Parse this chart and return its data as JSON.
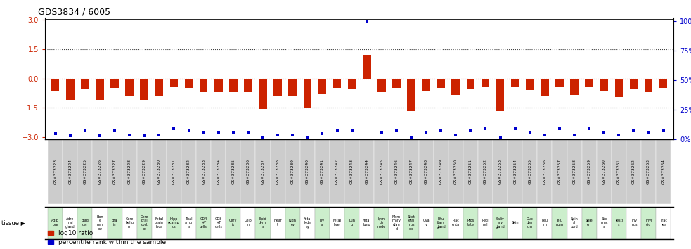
{
  "title": "GDS3834 / 6005",
  "samples": [
    "GSM373223",
    "GSM373224",
    "GSM373225",
    "GSM373226",
    "GSM373227",
    "GSM373228",
    "GSM373229",
    "GSM373230",
    "GSM373231",
    "GSM373232",
    "GSM373233",
    "GSM373234",
    "GSM373235",
    "GSM373236",
    "GSM373237",
    "GSM373238",
    "GSM373239",
    "GSM373240",
    "GSM373241",
    "GSM373242",
    "GSM373243",
    "GSM373244",
    "GSM373245",
    "GSM373246",
    "GSM373247",
    "GSM373248",
    "GSM373249",
    "GSM373250",
    "GSM373251",
    "GSM373252",
    "GSM373253",
    "GSM373254",
    "GSM373255",
    "GSM373256",
    "GSM373257",
    "GSM373258",
    "GSM373259",
    "GSM373260",
    "GSM373261",
    "GSM373262",
    "GSM373263",
    "GSM373264"
  ],
  "tissue_short": [
    "Adip\nose",
    "Adre\nnal\ngland",
    "Blad\nder",
    "Bon\ne\nmarr\now",
    "Bra\nin",
    "Cere\nbellu\nm",
    "Cere\nbral\ncort\nex",
    "Fetal\nbrain\nloca",
    "Hipp\nocamp\nus",
    "Thal\namu\ns",
    "CD4\n+T\ncells",
    "CD8\n+T\ncells",
    "Cerv\nix",
    "Colo\nn",
    "Epid\ndymi\ns",
    "Hear\nt",
    "Kidn\ney",
    "Fetal\nkidn\ney",
    "Liv\ner",
    "Fetal\nliver",
    "Lun\ng",
    "Fetal\nlung",
    "Lym\nph\nnode",
    "Mam\nmary\nglan\nd",
    "Sket\netal\nmus\ncle",
    "Ova\nry",
    "Pitu\nitary\ngland",
    "Plac\nenta",
    "Pros\ntate",
    "Reti\nnal",
    "Saliv\nary\ngland",
    "Skin",
    "Duo\nden\num",
    "Ileu\nm",
    "Jeju\nnum",
    "Spin\nal\ncord",
    "Sple\nen",
    "Sto\nmac\ns",
    "Testi\ns",
    "Thy\nmus",
    "Thyr\noid",
    "Trac\nhea"
  ],
  "log10_ratio": [
    -0.65,
    -1.1,
    -0.55,
    -1.1,
    -0.5,
    -0.9,
    -1.1,
    -0.9,
    -0.45,
    -0.5,
    -0.7,
    -0.7,
    -0.7,
    -0.7,
    -1.55,
    -0.9,
    -0.9,
    -1.5,
    -0.8,
    -0.5,
    -0.55,
    1.2,
    -0.7,
    -0.5,
    -1.65,
    -0.65,
    -0.5,
    -0.85,
    -0.55,
    -0.45,
    -1.65,
    -0.45,
    -0.6,
    -0.9,
    -0.45,
    -0.85,
    -0.45,
    -0.65,
    -0.95,
    -0.55,
    -0.7,
    -0.5
  ],
  "percentile": [
    5,
    3,
    7,
    3,
    8,
    4,
    3,
    4,
    9,
    8,
    6,
    6,
    6,
    6,
    2,
    4,
    4,
    2,
    5,
    8,
    7,
    100,
    6,
    8,
    2,
    6,
    8,
    4,
    7,
    9,
    2,
    9,
    6,
    4,
    9,
    4,
    9,
    6,
    4,
    8,
    6,
    8
  ],
  "bar_color": "#cc2200",
  "square_color": "#0000cc",
  "ylim_left": [
    -3.1,
    3.1
  ],
  "ylim_right": [
    0,
    103.3
  ],
  "yticks_left": [
    -3,
    -1.5,
    0,
    1.5,
    3
  ],
  "yticks_right": [
    0,
    25,
    50,
    75,
    100
  ],
  "hlines_dotted": [
    1.5,
    -1.5
  ],
  "hline_red_dotted": 0.0,
  "tissue_bg_colors": [
    "#cceecc",
    "#ffffff"
  ],
  "sample_bg_color": "#cccccc",
  "background_color": "#ffffff",
  "legend_items": [
    {
      "label": "log10 ratio",
      "color": "#cc2200"
    },
    {
      "label": "percentile rank within the sample",
      "color": "#0000cc"
    }
  ]
}
